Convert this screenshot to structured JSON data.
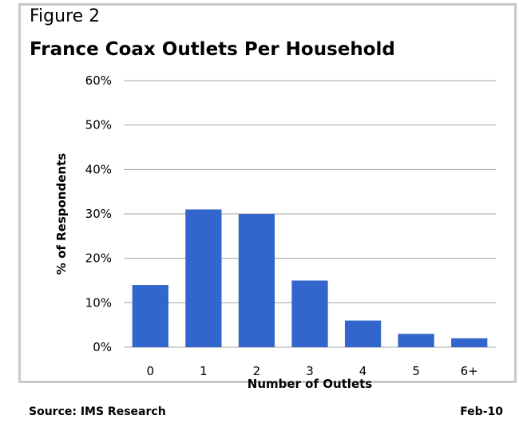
{
  "figure_label": "Figure 2",
  "footer": {
    "source": "Source: IMS Research",
    "date": "Feb-10"
  },
  "colors": {
    "bar": "#3366cc",
    "grid": "#a6a6a6",
    "frame": "#c9c9c9"
  },
  "chart_data": {
    "type": "bar",
    "title": "France Coax Outlets Per Household",
    "xlabel": "Number of Outlets",
    "ylabel": "% of Respondents",
    "categories": [
      "0",
      "1",
      "2",
      "3",
      "4",
      "5",
      "6+"
    ],
    "values": [
      14,
      31,
      30,
      15,
      6,
      3,
      2
    ],
    "ylim": [
      0,
      60
    ],
    "yticks": [
      0,
      10,
      20,
      30,
      40,
      50,
      60
    ],
    "ytick_labels": [
      "0%",
      "10%",
      "20%",
      "30%",
      "40%",
      "50%",
      "60%"
    ],
    "grid": true,
    "legend": "none"
  }
}
